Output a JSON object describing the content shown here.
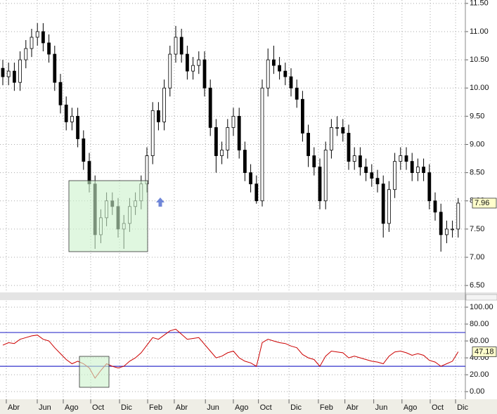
{
  "chart_data": [
    {
      "type": "candlestick",
      "color_up": "#ffffff",
      "color_down": "#000000",
      "grid": true,
      "xlim": [
        0,
        80
      ],
      "ylim": [
        6.39,
        11.56
      ],
      "yticks": [
        {
          "value": 6.5,
          "label": "6.50"
        },
        {
          "value": 7,
          "label": "7.00"
        },
        {
          "value": 7.5,
          "label": "7.50"
        },
        {
          "value": 8,
          "label": "8.00"
        },
        {
          "value": 8.5,
          "label": "8.50"
        },
        {
          "value": 9,
          "label": "9.00"
        },
        {
          "value": 9.5,
          "label": "9.50"
        },
        {
          "value": 10,
          "label": "10.00"
        },
        {
          "value": 10.5,
          "label": "10.50"
        },
        {
          "value": 11,
          "label": "11.00"
        },
        {
          "value": 11.5,
          "label": "11.50"
        }
      ],
      "open": [
        10.35,
        10.2,
        10.3,
        10.1,
        10.5,
        10.7,
        10.9,
        11.0,
        10.8,
        10.6,
        10.1,
        9.7,
        9.4,
        9.5,
        9.1,
        8.7,
        8.3,
        7.4,
        7.7,
        8.0,
        7.9,
        7.5,
        7.6,
        7.9,
        8.0,
        8.3,
        8.8,
        9.6,
        9.4,
        10.0,
        10.6,
        10.9,
        10.6,
        10.3,
        10.4,
        10.5,
        10.0,
        9.3,
        8.8,
        8.9,
        9.3,
        9.5,
        8.9,
        8.5,
        8.3,
        8.0,
        10.0,
        10.5,
        10.4,
        10.3,
        10.2,
        10.0,
        9.8,
        9.2,
        8.8,
        8.6,
        8.0,
        8.9,
        9.3,
        9.3,
        9.2,
        8.7,
        8.8,
        8.6,
        8.5,
        8.4,
        8.3,
        7.6,
        8.2,
        8.7,
        8.8,
        8.7,
        8.5,
        8.6,
        8.5,
        8.0,
        7.8,
        7.4,
        7.5,
        7.5
      ],
      "high": [
        10.5,
        10.45,
        10.45,
        10.65,
        10.85,
        11.05,
        11.15,
        11.15,
        10.95,
        10.75,
        10.25,
        9.85,
        9.65,
        9.65,
        9.25,
        8.85,
        8.45,
        7.85,
        8.15,
        8.15,
        8.05,
        7.75,
        8.05,
        8.15,
        8.45,
        8.95,
        9.75,
        9.75,
        10.15,
        10.75,
        11.1,
        11.05,
        10.75,
        10.55,
        10.65,
        10.65,
        10.15,
        9.45,
        9.05,
        9.45,
        9.65,
        9.65,
        9.05,
        8.65,
        8.45,
        10.15,
        10.7,
        10.75,
        10.55,
        10.45,
        10.35,
        10.15,
        9.95,
        9.35,
        8.95,
        8.75,
        9.05,
        9.45,
        9.5,
        9.45,
        9.35,
        8.95,
        8.95,
        8.75,
        8.65,
        8.55,
        8.45,
        8.35,
        8.85,
        8.95,
        8.95,
        8.85,
        8.75,
        8.75,
        8.65,
        8.15,
        7.95,
        7.65,
        7.65,
        8.05
      ],
      "low": [
        10.05,
        10.05,
        9.95,
        9.95,
        10.35,
        10.55,
        10.75,
        10.65,
        10.45,
        9.95,
        9.55,
        9.25,
        9.25,
        8.95,
        8.55,
        8.15,
        7.15,
        7.25,
        7.55,
        7.75,
        7.35,
        7.15,
        7.45,
        7.75,
        7.85,
        8.15,
        8.65,
        9.25,
        9.25,
        9.85,
        10.45,
        10.45,
        10.15,
        10.15,
        10.25,
        9.85,
        9.15,
        8.5,
        8.65,
        8.75,
        9.15,
        8.75,
        8.35,
        8.15,
        7.95,
        7.9,
        9.85,
        10.25,
        10.15,
        10.05,
        9.85,
        9.65,
        9.05,
        8.6,
        8.45,
        7.85,
        7.85,
        8.75,
        9.15,
        9.05,
        8.55,
        8.55,
        8.45,
        8.35,
        8.25,
        8.15,
        7.35,
        7.45,
        8.05,
        8.55,
        8.55,
        8.35,
        8.35,
        8.35,
        7.85,
        7.65,
        7.1,
        7.25,
        7.35,
        7.35
      ],
      "close": [
        10.2,
        10.3,
        10.1,
        10.5,
        10.7,
        10.9,
        11.0,
        10.8,
        10.6,
        10.1,
        9.7,
        9.4,
        9.5,
        9.1,
        8.7,
        8.3,
        7.4,
        7.7,
        8.0,
        7.9,
        7.5,
        7.6,
        7.9,
        8.0,
        8.3,
        8.8,
        9.6,
        9.4,
        10.0,
        10.6,
        10.9,
        10.6,
        10.3,
        10.4,
        10.5,
        10.0,
        9.3,
        8.8,
        8.9,
        9.3,
        9.5,
        8.9,
        8.5,
        8.3,
        8.0,
        10.0,
        10.5,
        10.4,
        10.3,
        10.2,
        10.0,
        9.8,
        9.2,
        8.8,
        8.6,
        8.0,
        8.9,
        9.3,
        9.3,
        9.2,
        8.7,
        8.8,
        8.6,
        8.5,
        8.4,
        8.3,
        7.6,
        8.2,
        8.7,
        8.8,
        8.7,
        8.5,
        8.6,
        8.5,
        8.0,
        7.8,
        7.4,
        7.5,
        7.5,
        7.96
      ]
    },
    {
      "type": "line",
      "color": "#cc0000",
      "grid": true,
      "hlines": [
        70,
        30
      ],
      "hline_color": "#3333cc",
      "xlim": [
        0,
        80
      ],
      "ylim": [
        -9,
        107.5
      ],
      "yticks": [
        {
          "value": 0,
          "label": "0.00"
        },
        {
          "value": 20,
          "label": "20.00"
        },
        {
          "value": 40,
          "label": "40.00"
        },
        {
          "value": 60,
          "label": "60.00"
        },
        {
          "value": 80,
          "label": "80.00"
        },
        {
          "value": 100,
          "label": "100.00"
        }
      ],
      "xticks": [
        {
          "value": 1.46,
          "label": "Abr"
        },
        {
          "value": 6.83,
          "label": "Jun"
        },
        {
          "value": 11.34,
          "label": "Ago"
        },
        {
          "value": 16.1,
          "label": "Oct"
        },
        {
          "value": 21.1,
          "label": "Dic"
        },
        {
          "value": 25.98,
          "label": "Feb"
        },
        {
          "value": 30.6,
          "label": "Abr"
        },
        {
          "value": 36.0,
          "label": "Jun"
        },
        {
          "value": 40.85,
          "label": "Ago"
        },
        {
          "value": 45.2,
          "label": "Oct"
        },
        {
          "value": 50.5,
          "label": "Dic"
        },
        {
          "value": 55.6,
          "label": "Feb"
        },
        {
          "value": 60.2,
          "label": "Abr"
        },
        {
          "value": 65.2,
          "label": "Jun"
        },
        {
          "value": 70.1,
          "label": "Ago"
        },
        {
          "value": 75.0,
          "label": "Oct"
        },
        {
          "value": 79.4,
          "label": "Dic"
        }
      ],
      "values": [
        55,
        58,
        57,
        62,
        64,
        66,
        67,
        62,
        60,
        52,
        45,
        38,
        33,
        36,
        33,
        28,
        16,
        25,
        33,
        30,
        28,
        30,
        36,
        40,
        46,
        55,
        64,
        62,
        67,
        72,
        74,
        68,
        62,
        63,
        64,
        56,
        48,
        40,
        42,
        46,
        48,
        40,
        36,
        34,
        30,
        58,
        62,
        60,
        58,
        57,
        54,
        52,
        44,
        40,
        38,
        30,
        42,
        48,
        47,
        46,
        40,
        42,
        40,
        38,
        36,
        35,
        33,
        42,
        47,
        48,
        46,
        43,
        45,
        43,
        37,
        35,
        30,
        33,
        36,
        47.18
      ]
    }
  ]
}
